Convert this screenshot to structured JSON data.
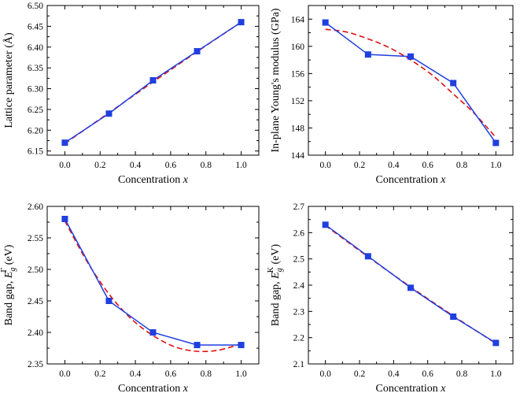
{
  "figure": {
    "background": "#ffffff"
  },
  "colors": {
    "data": "#1f3fe0",
    "fit": "#e01010",
    "axis": "#000000"
  },
  "chart_data": [
    {
      "id": "a",
      "type": "line",
      "x": [
        0.0,
        0.25,
        0.5,
        0.75,
        1.0
      ],
      "series": [
        {
          "name": "data",
          "style": "solid-square-markers",
          "values": [
            6.17,
            6.24,
            6.32,
            6.39,
            6.46
          ]
        },
        {
          "name": "fit",
          "style": "dashed",
          "points": [
            [
              0,
              6.168
            ],
            [
              0.25,
              6.242
            ],
            [
              0.5,
              6.316
            ],
            [
              0.75,
              6.389
            ],
            [
              1.0,
              6.46
            ]
          ]
        }
      ],
      "xlabel": "Concentration ",
      "xlabel_italic": "x",
      "ylabel": "Lattice parameter (Å)",
      "xlim": [
        -0.1,
        1.1
      ],
      "ylim": [
        6.14,
        6.5
      ],
      "xticks": [
        "0.0",
        "0.2",
        "0.4",
        "0.6",
        "0.8",
        "1.0"
      ],
      "xtick_values": [
        0.0,
        0.2,
        0.4,
        0.6,
        0.8,
        1.0
      ],
      "yticks": [
        "6.15",
        "6.20",
        "6.25",
        "6.30",
        "6.35",
        "6.40",
        "6.45",
        "6.50"
      ],
      "ytick_values": [
        6.15,
        6.2,
        6.25,
        6.3,
        6.35,
        6.4,
        6.45,
        6.5
      ]
    },
    {
      "id": "b",
      "type": "line",
      "x": [
        0.0,
        0.25,
        0.5,
        0.75,
        1.0
      ],
      "series": [
        {
          "name": "data",
          "style": "solid-square-markers",
          "values": [
            163.5,
            158.8,
            158.5,
            154.6,
            145.8
          ]
        },
        {
          "name": "fit",
          "style": "dashed",
          "points": [
            [
              0,
              162.5
            ],
            [
              0.125,
              162.1
            ],
            [
              0.25,
              161.1
            ],
            [
              0.375,
              159.8
            ],
            [
              0.5,
              158.0
            ],
            [
              0.625,
              155.8
            ],
            [
              0.75,
              153.0
            ],
            [
              0.875,
              150.1
            ],
            [
              1.0,
              146.6
            ]
          ]
        }
      ],
      "xlabel": "Concentration ",
      "xlabel_italic": "x",
      "ylabel": "In-plane Young's modulus (GPa)",
      "xlim": [
        -0.1,
        1.1
      ],
      "ylim": [
        144,
        166
      ],
      "xticks": [
        "0.0",
        "0.2",
        "0.4",
        "0.6",
        "0.8",
        "1.0"
      ],
      "xtick_values": [
        0.0,
        0.2,
        0.4,
        0.6,
        0.8,
        1.0
      ],
      "yticks": [
        "144",
        "148",
        "152",
        "156",
        "160",
        "164"
      ],
      "ytick_values": [
        144,
        148,
        152,
        156,
        160,
        164
      ]
    },
    {
      "id": "c",
      "type": "line",
      "x": [
        0.0,
        0.25,
        0.5,
        0.75,
        1.0
      ],
      "series": [
        {
          "name": "data",
          "style": "solid-square-markers",
          "values": [
            2.58,
            2.45,
            2.4,
            2.38,
            2.38
          ]
        },
        {
          "name": "fit",
          "style": "dashed",
          "points": [
            [
              0,
              2.577
            ],
            [
              0.125,
              2.513
            ],
            [
              0.25,
              2.461
            ],
            [
              0.375,
              2.422
            ],
            [
              0.5,
              2.395
            ],
            [
              0.625,
              2.377
            ],
            [
              0.75,
              2.37
            ],
            [
              0.875,
              2.372
            ],
            [
              1.0,
              2.382
            ]
          ]
        }
      ],
      "xlabel": "Concentration ",
      "xlabel_italic": "x",
      "ylabel_prefix": "Band gap, ",
      "ylabel_symbol": "E",
      "ylabel_sub": "g",
      "ylabel_sup": "Γ",
      "ylabel_unit": " (eV)",
      "xlim": [
        -0.1,
        1.1
      ],
      "ylim": [
        2.35,
        2.6
      ],
      "xticks": [
        "0.0",
        "0.2",
        "0.4",
        "0.6",
        "0.8",
        "1.0"
      ],
      "xtick_values": [
        0.0,
        0.2,
        0.4,
        0.6,
        0.8,
        1.0
      ],
      "yticks": [
        "2.35",
        "2.40",
        "2.45",
        "2.50",
        "2.55",
        "2.60"
      ],
      "ytick_values": [
        2.35,
        2.4,
        2.45,
        2.5,
        2.55,
        2.6
      ]
    },
    {
      "id": "d",
      "type": "line",
      "x": [
        0.0,
        0.25,
        0.5,
        0.75,
        1.0
      ],
      "series": [
        {
          "name": "data",
          "style": "solid-square-markers",
          "values": [
            2.63,
            2.51,
            2.39,
            2.28,
            2.18
          ]
        },
        {
          "name": "fit",
          "style": "dashed",
          "points": [
            [
              0,
              2.627
            ],
            [
              0.25,
              2.508
            ],
            [
              0.5,
              2.393
            ],
            [
              0.75,
              2.283
            ],
            [
              1.0,
              2.178
            ]
          ]
        }
      ],
      "xlabel": "Concentration ",
      "xlabel_italic": "x",
      "ylabel_prefix": "Band gap, ",
      "ylabel_symbol": "E",
      "ylabel_sub": "g",
      "ylabel_sup": "K",
      "ylabel_unit": " (eV)",
      "xlim": [
        -0.1,
        1.1
      ],
      "ylim": [
        2.1,
        2.7
      ],
      "xticks": [
        "0.0",
        "0.2",
        "0.4",
        "0.6",
        "0.8",
        "1.0"
      ],
      "xtick_values": [
        0.0,
        0.2,
        0.4,
        0.6,
        0.8,
        1.0
      ],
      "yticks": [
        "2.1",
        "2.2",
        "2.3",
        "2.4",
        "2.5",
        "2.6",
        "2.7"
      ],
      "ytick_values": [
        2.1,
        2.2,
        2.3,
        2.4,
        2.5,
        2.6,
        2.7
      ]
    }
  ]
}
